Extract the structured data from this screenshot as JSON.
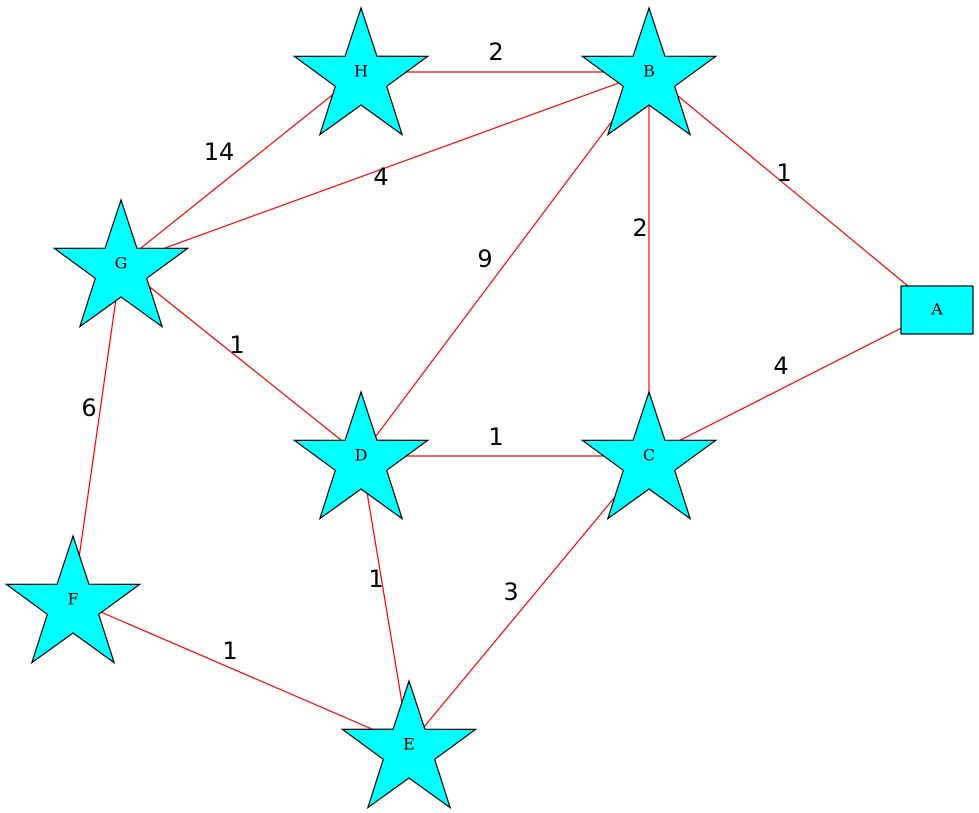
{
  "colors": {
    "node_fill": "#00ffff",
    "node_stroke": "#000000",
    "edge": "#ff0000",
    "background": "#ffffff"
  },
  "nodes": [
    {
      "id": "A",
      "label": "A",
      "shape": "box"
    },
    {
      "id": "B",
      "label": "B",
      "shape": "star"
    },
    {
      "id": "C",
      "label": "C",
      "shape": "star"
    },
    {
      "id": "D",
      "label": "D",
      "shape": "star"
    },
    {
      "id": "E",
      "label": "E",
      "shape": "star"
    },
    {
      "id": "F",
      "label": "F",
      "shape": "star"
    },
    {
      "id": "G",
      "label": "G",
      "shape": "star"
    },
    {
      "id": "H",
      "label": "H",
      "shape": "star"
    }
  ],
  "edges": [
    {
      "from": "H",
      "to": "B",
      "weight": "2"
    },
    {
      "from": "G",
      "to": "H",
      "weight": "14"
    },
    {
      "from": "G",
      "to": "B",
      "weight": "4"
    },
    {
      "from": "B",
      "to": "A",
      "weight": "1"
    },
    {
      "from": "B",
      "to": "C",
      "weight": "2"
    },
    {
      "from": "D",
      "to": "B",
      "weight": "9"
    },
    {
      "from": "G",
      "to": "D",
      "weight": "1"
    },
    {
      "from": "C",
      "to": "A",
      "weight": "4"
    },
    {
      "from": "D",
      "to": "C",
      "weight": "1"
    },
    {
      "from": "G",
      "to": "F",
      "weight": "6"
    },
    {
      "from": "D",
      "to": "E",
      "weight": "1"
    },
    {
      "from": "E",
      "to": "C",
      "weight": "3"
    },
    {
      "from": "F",
      "to": "E",
      "weight": "1"
    }
  ]
}
